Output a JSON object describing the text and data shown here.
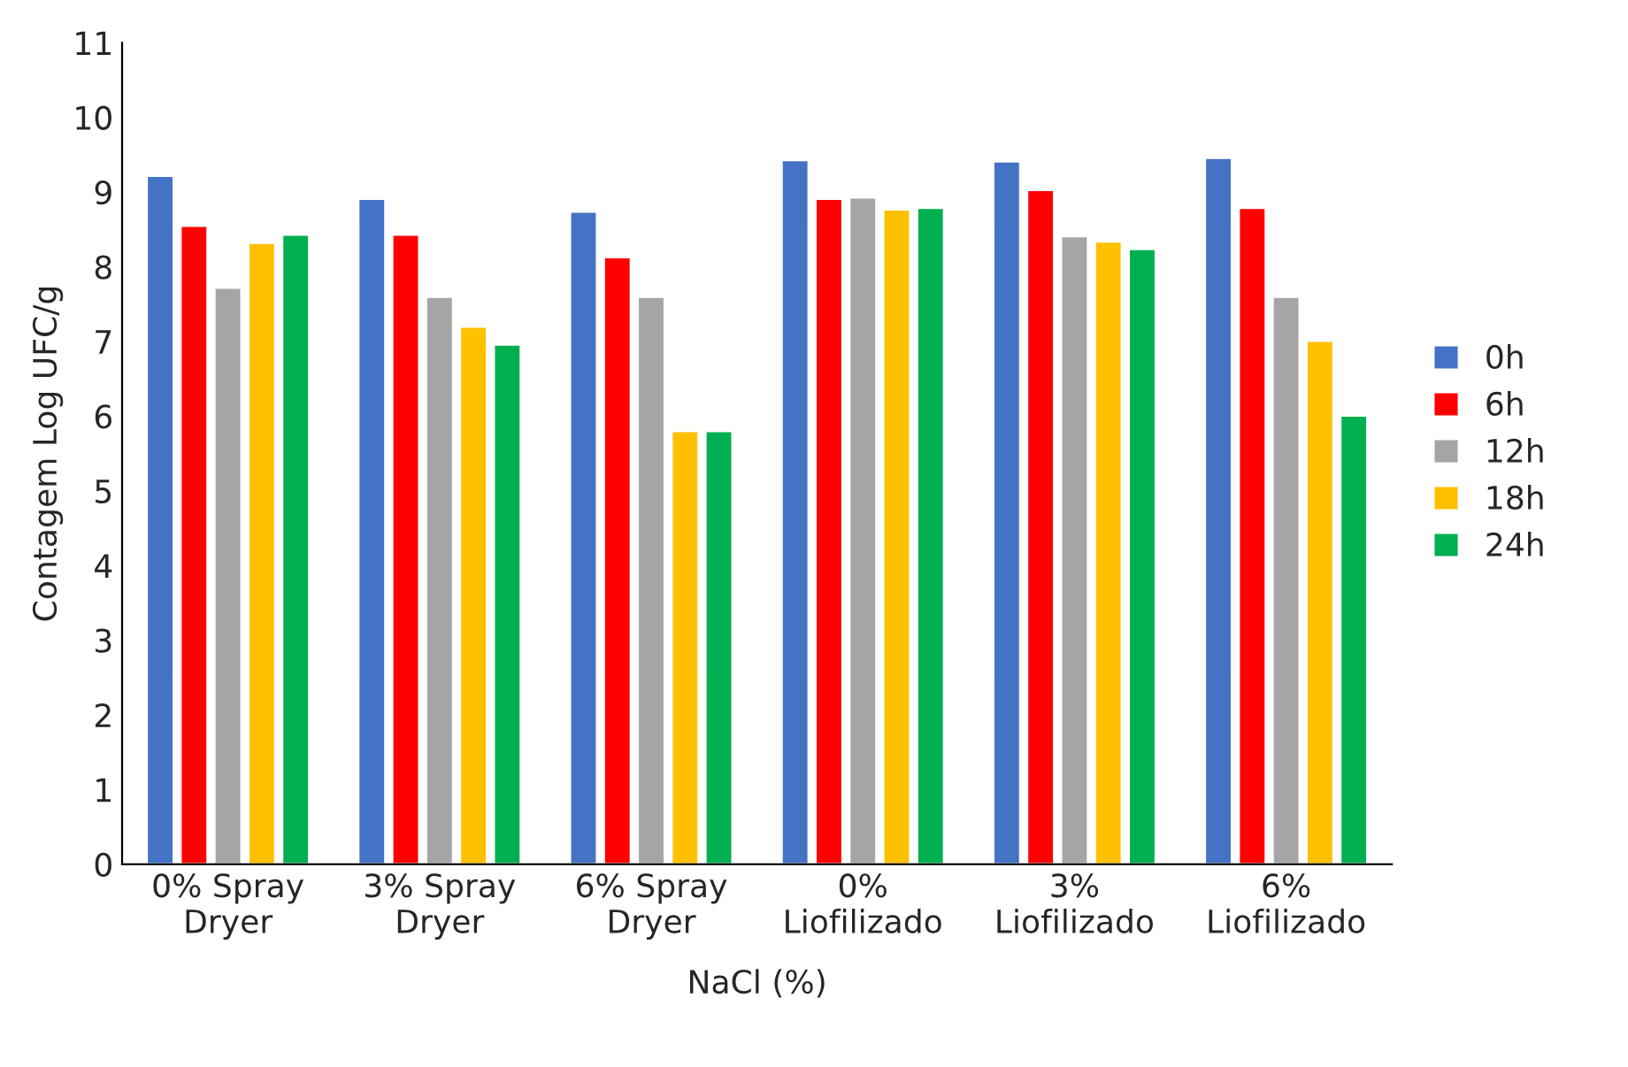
{
  "chart_data": {
    "type": "bar",
    "xlabel": "NaCl (%)",
    "ylabel": "Contagem Log UFC/g",
    "categories": [
      "0% Spray\nDryer",
      "3% Spray\nDryer",
      "6% Spray\nDryer",
      "0%\nLiofilizado",
      "3%\nLiofilizado",
      "6%\nLiofilizado"
    ],
    "series": [
      {
        "name": "0h",
        "color": "#4472c4",
        "values": [
          9.22,
          8.91,
          8.74,
          9.43,
          9.41,
          9.46
        ]
      },
      {
        "name": "6h",
        "color": "#ff0000",
        "values": [
          8.55,
          8.43,
          8.13,
          8.91,
          9.03,
          8.79
        ]
      },
      {
        "name": "12h",
        "color": "#a5a5a5",
        "values": [
          7.72,
          7.6,
          7.6,
          8.93,
          8.41,
          7.6
        ]
      },
      {
        "name": "18h",
        "color": "#ffc000",
        "values": [
          8.32,
          7.2,
          5.8,
          8.77,
          8.34,
          7.01
        ]
      },
      {
        "name": "24h",
        "color": "#00b050",
        "values": [
          8.43,
          6.96,
          5.8,
          8.79,
          8.24,
          6.01
        ]
      }
    ],
    "ylim": [
      0,
      11
    ],
    "yticks": [
      0,
      1,
      2,
      3,
      4,
      5,
      6,
      7,
      8,
      9,
      10,
      11
    ],
    "grid": false,
    "legend": "right"
  }
}
